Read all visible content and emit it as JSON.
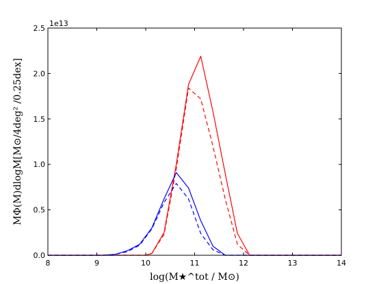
{
  "chart_data": {
    "type": "line",
    "xlabel": "log(M★^tot / M⊙)",
    "ylabel": "MΦ(M)dlogM[M⊙/4deg² /0.25dex]",
    "xlim": [
      8,
      14
    ],
    "ylim": [
      0,
      2.5
    ],
    "y_offset_label": "1e13",
    "x_ticks": [
      "8",
      "9",
      "10",
      "11",
      "12",
      "13",
      "14"
    ],
    "y_ticks": [
      "0.0",
      "0.5",
      "1.0",
      "1.5",
      "2.0",
      "2.5"
    ],
    "grid": false,
    "legend": "none",
    "series": [
      {
        "color": "#ff0000",
        "style": "solid",
        "x": [
          8.0,
          10.0,
          10.125,
          10.375,
          10.625,
          10.875,
          11.125,
          11.375,
          11.625,
          11.875,
          12.125,
          14.0
        ],
        "y": [
          0.0,
          0.0,
          0.02,
          0.25,
          1.0,
          1.88,
          2.19,
          1.58,
          0.9,
          0.24,
          0.0,
          0.0
        ]
      },
      {
        "color": "#ff0000",
        "style": "dashed",
        "x": [
          8.0,
          10.0,
          10.125,
          10.375,
          10.625,
          10.875,
          11.125,
          11.375,
          11.625,
          11.875,
          12.125,
          14.0
        ],
        "y": [
          0.0,
          0.0,
          0.02,
          0.23,
          0.95,
          1.84,
          1.72,
          1.2,
          0.62,
          0.12,
          0.0,
          0.0
        ]
      },
      {
        "color": "#0000ff",
        "style": "solid",
        "x": [
          8.0,
          9.125,
          9.375,
          9.625,
          9.875,
          10.125,
          10.375,
          10.625,
          10.875,
          11.125,
          11.375,
          11.625,
          14.0
        ],
        "y": [
          0.0,
          0.0,
          0.01,
          0.05,
          0.12,
          0.3,
          0.62,
          0.91,
          0.74,
          0.38,
          0.1,
          0.0,
          0.0
        ]
      },
      {
        "color": "#0000ff",
        "style": "dashed",
        "x": [
          8.0,
          9.125,
          9.375,
          9.625,
          9.875,
          10.125,
          10.375,
          10.625,
          10.875,
          11.125,
          11.375,
          11.625,
          14.0
        ],
        "y": [
          0.0,
          0.0,
          0.01,
          0.04,
          0.11,
          0.29,
          0.58,
          0.79,
          0.62,
          0.24,
          0.06,
          0.0,
          0.0
        ]
      }
    ]
  }
}
